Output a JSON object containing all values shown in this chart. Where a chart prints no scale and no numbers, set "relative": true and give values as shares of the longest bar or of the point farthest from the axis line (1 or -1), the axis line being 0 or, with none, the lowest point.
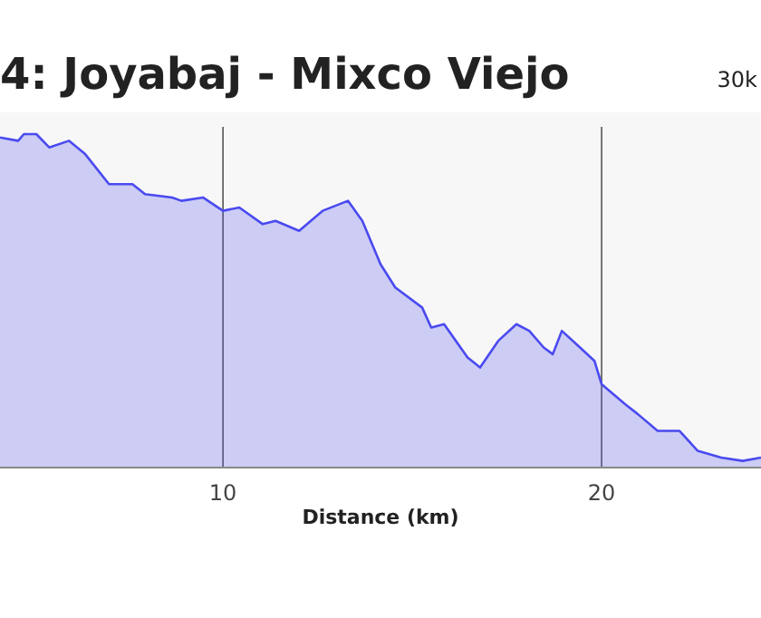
{
  "chart_data": {
    "type": "area",
    "title": "4: Joyabaj - Mixco Viejo",
    "subtitle": "30k",
    "xlabel": "Distance (km)",
    "relative": true,
    "grid": "x",
    "xlim": [
      4.11,
      24.21
    ],
    "xticks": [
      10,
      20
    ],
    "series": [
      {
        "color": "#4a4af0",
        "x": [
          4.11,
          4.59,
          4.74,
          5.07,
          5.41,
          5.93,
          6.36,
          6.99,
          7.61,
          7.94,
          8.66,
          8.9,
          9.47,
          10,
          10.43,
          11.05,
          11.39,
          12.01,
          12.63,
          13.3,
          13.68,
          14.16,
          14.55,
          15.26,
          15.5,
          15.84,
          16.46,
          16.79,
          17.27,
          17.75,
          18.09,
          18.47,
          18.71,
          18.95,
          19.43,
          19.81,
          20,
          20.62,
          20.96,
          21.48,
          22.06,
          22.54,
          23.16,
          23.73,
          24.21
        ],
        "values": [
          0.99,
          0.98,
          1,
          1,
          0.96,
          0.98,
          0.94,
          0.85,
          0.85,
          0.82,
          0.81,
          0.8,
          0.81,
          0.77,
          0.78,
          0.73,
          0.74,
          0.71,
          0.77,
          0.8,
          0.74,
          0.61,
          0.54,
          0.48,
          0.42,
          0.43,
          0.33,
          0.3,
          0.38,
          0.43,
          0.41,
          0.36,
          0.34,
          0.41,
          0.36,
          0.32,
          0.25,
          0.19,
          0.16,
          0.11,
          0.11,
          0.05,
          0.03,
          0.02,
          0.03
        ]
      }
    ]
  }
}
